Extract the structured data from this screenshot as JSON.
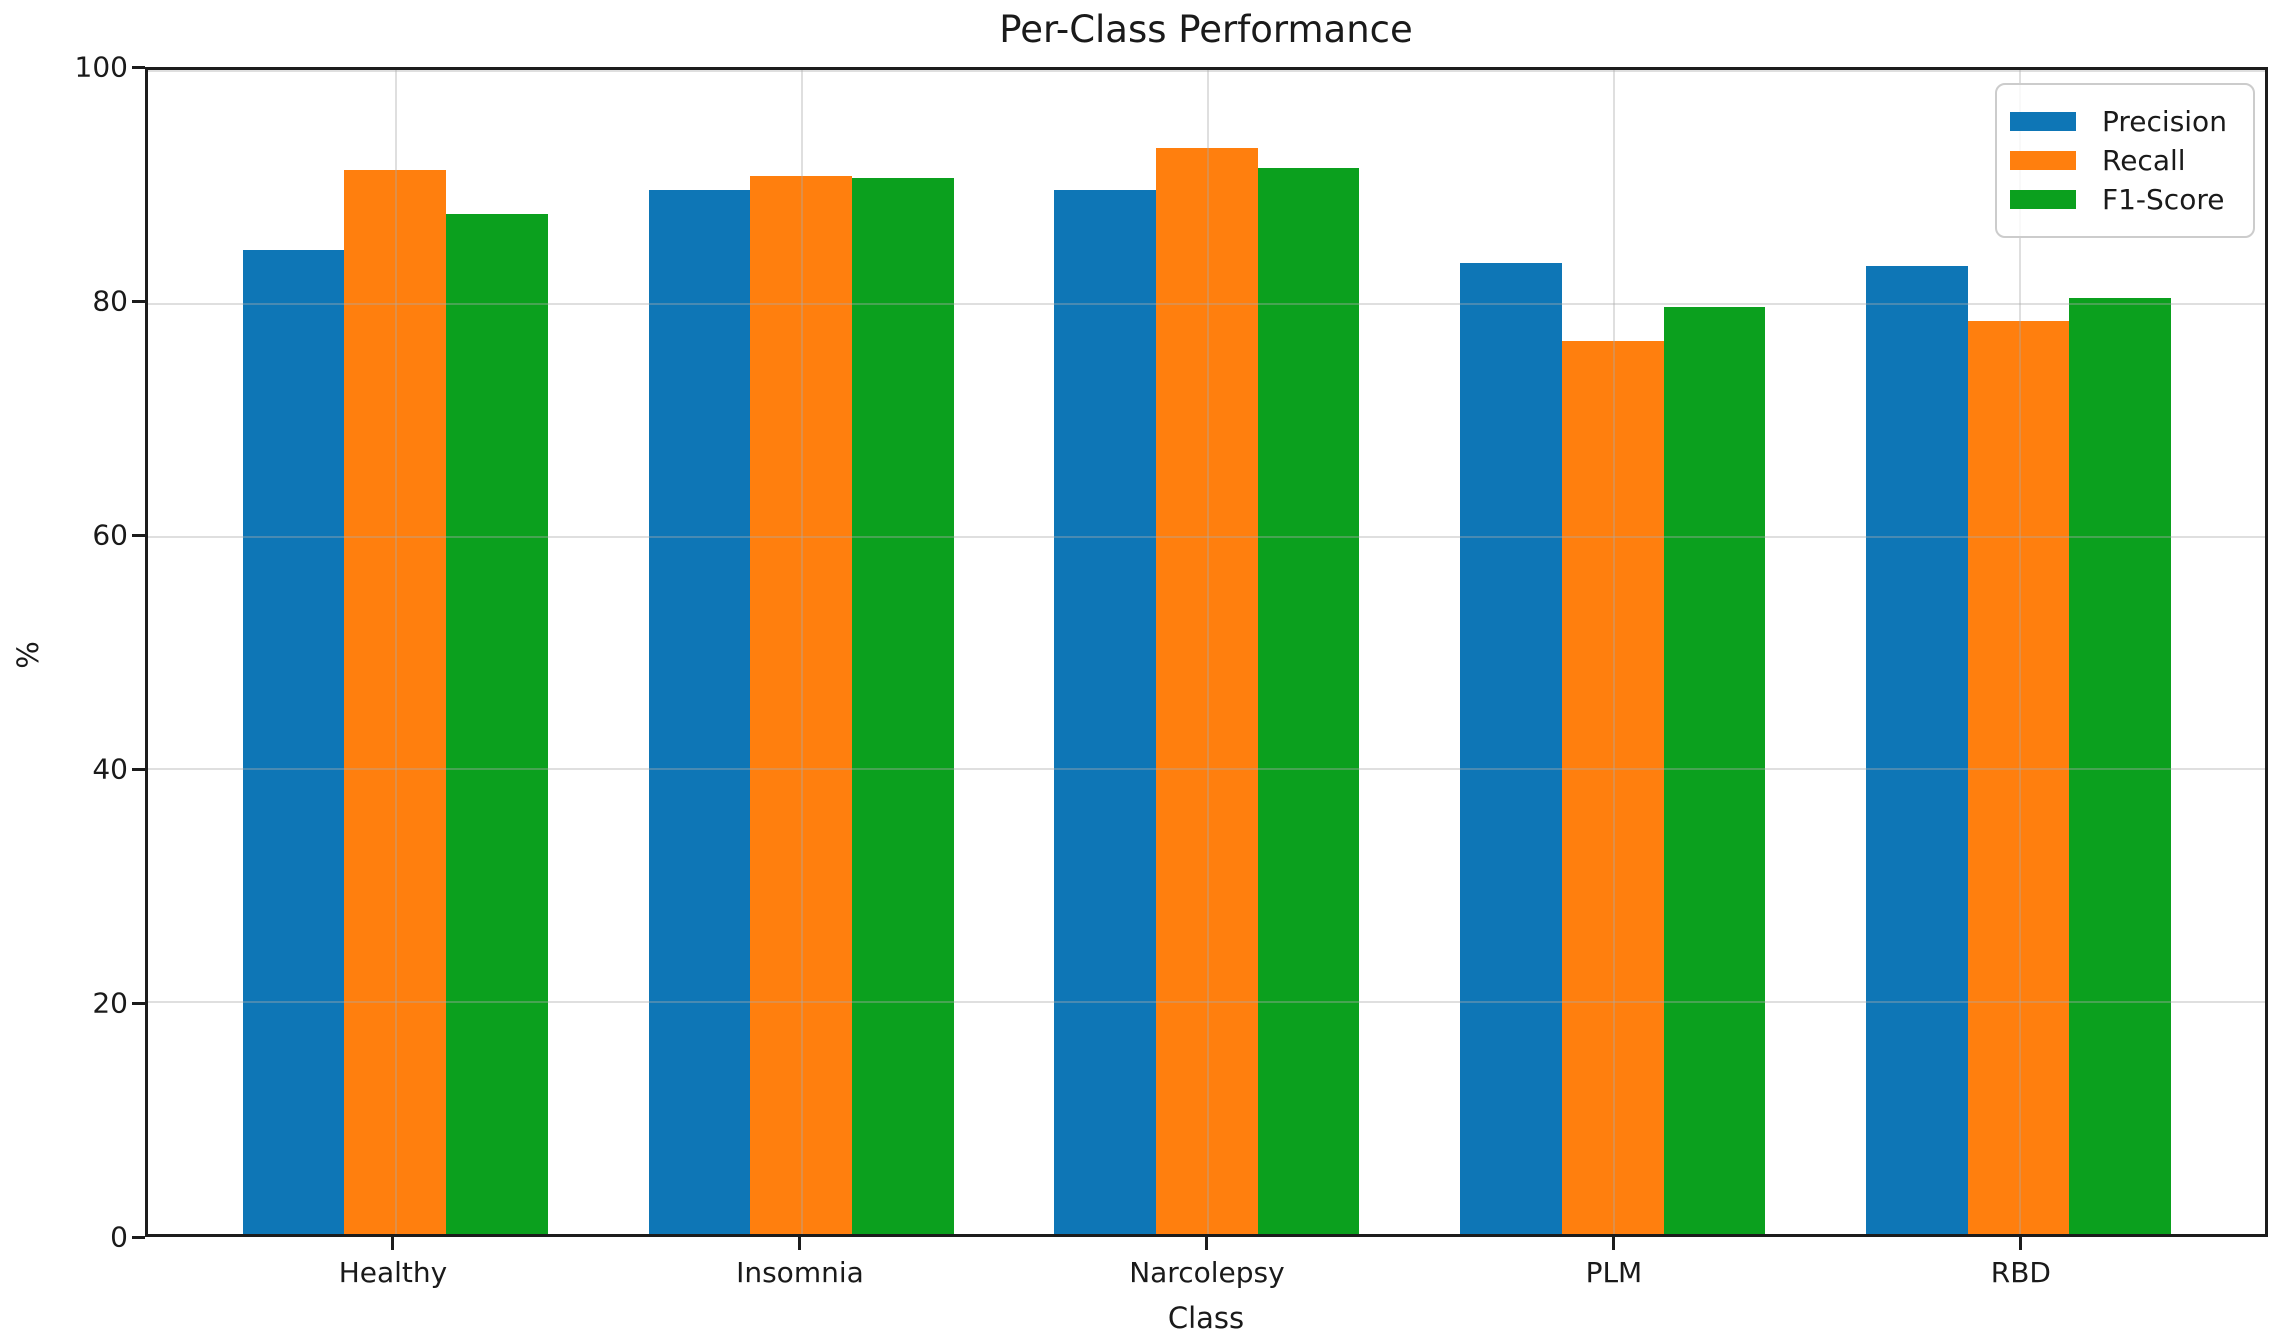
{
  "chart_data": {
    "type": "bar",
    "title": "Per-Class Performance",
    "xlabel": "Class",
    "ylabel": "%",
    "categories": [
      "Healthy",
      "Insomnia",
      "Narcolepsy",
      "PLM",
      "RBD"
    ],
    "series": [
      {
        "name": "Precision",
        "color": "#0e76b6",
        "values": [
          84.5,
          89.7,
          89.7,
          83.4,
          83.2
        ]
      },
      {
        "name": "Recall",
        "color": "#ff7f0e",
        "values": [
          91.4,
          90.9,
          93.3,
          76.7,
          78.4
        ]
      },
      {
        "name": "F1-Score",
        "color": "#0ba01e",
        "values": [
          87.6,
          90.7,
          91.6,
          79.6,
          80.4
        ]
      }
    ],
    "ylim": [
      0,
      100
    ],
    "yticks": [
      0,
      20,
      40,
      60,
      80,
      100
    ],
    "grid": true,
    "grid_over_bars": true,
    "legend_position": "upper right",
    "axis_color": "#1c1c1c",
    "background_color": "#ffffff"
  }
}
